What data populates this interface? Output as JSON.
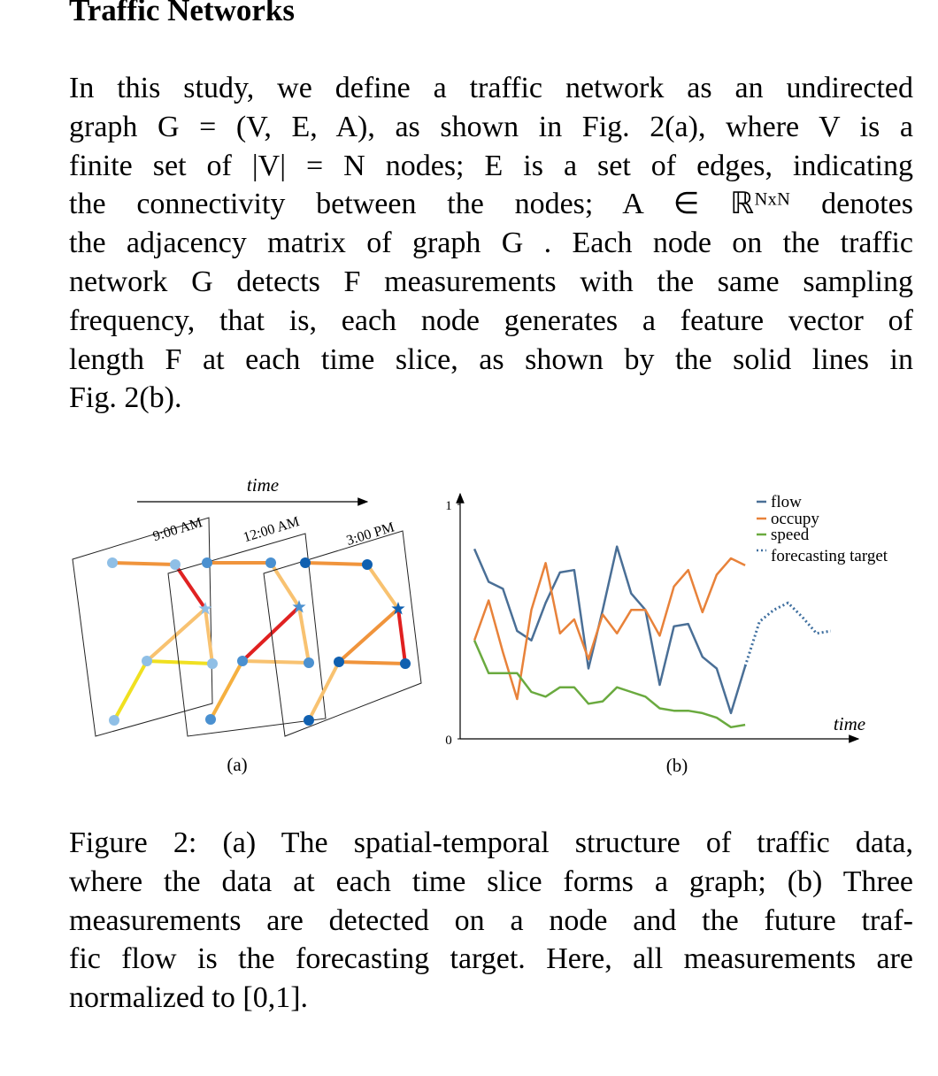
{
  "section_title": "Traffic Networks",
  "paragraph": [
    "In this study, we define a traffic network as an undirected",
    "graph G = (V, E, A), as shown in Fig. 2(a), where V is a",
    "finite set of |V| = N nodes; E is a set of edges, indicating",
    "the connectivity between the nodes; A ∈ ℝᴺˣᴺ denotes",
    "the adjacency matrix of graph G . Each node on the traffic",
    "network G detects F measurements with the same sampling",
    "frequency, that is, each node generates a feature vector of",
    "length F at each time slice, as shown by the solid lines in",
    "Fig. 2(b)."
  ],
  "figure": {
    "panel_a": {
      "time_label": "time",
      "slices": [
        "9:00 AM",
        "12:00 AM",
        "3:00 PM"
      ],
      "label": "(a)"
    },
    "panel_b": {
      "type": "line",
      "x": [
        0,
        1,
        2,
        3,
        4,
        5,
        6,
        7,
        8,
        9,
        10,
        11,
        12,
        13,
        14,
        15,
        16,
        17,
        18,
        19,
        20,
        21,
        22,
        23,
        24,
        25
      ],
      "xlim": [
        -1,
        27
      ],
      "ylim": [
        0,
        1
      ],
      "yticks": [
        0,
        1
      ],
      "xlabel": "time",
      "series": [
        {
          "name": "flow",
          "color": "#4a6f96",
          "line_style": "solid",
          "values": [
            0.81,
            0.67,
            0.64,
            0.46,
            0.42,
            0.58,
            0.71,
            0.72,
            0.3,
            0.55,
            0.82,
            0.62,
            0.55,
            0.23,
            0.48,
            0.49,
            0.35,
            0.3,
            0.11,
            0.31,
            null,
            null,
            null,
            null,
            null,
            null
          ]
        },
        {
          "name": "occupy",
          "color": "#e8823a",
          "line_style": "solid",
          "values": [
            0.42,
            0.59,
            0.37,
            0.17,
            0.55,
            0.75,
            0.45,
            0.51,
            0.34,
            0.53,
            0.45,
            0.55,
            0.55,
            0.44,
            0.65,
            0.72,
            0.54,
            0.7,
            0.77,
            0.74,
            null,
            null,
            null,
            null,
            null,
            null
          ]
        },
        {
          "name": "speed",
          "color": "#6aaa3f",
          "line_style": "solid",
          "values": [
            0.42,
            0.28,
            0.28,
            0.28,
            0.2,
            0.18,
            0.22,
            0.22,
            0.15,
            0.16,
            0.22,
            0.2,
            0.18,
            0.13,
            0.12,
            0.12,
            0.11,
            0.09,
            0.05,
            0.06,
            null,
            null,
            null,
            null,
            null,
            null
          ]
        },
        {
          "name": "forecasting target",
          "color": "#3f6f9f",
          "line_style": "dotted",
          "values": [
            null,
            null,
            null,
            null,
            null,
            null,
            null,
            null,
            null,
            null,
            null,
            null,
            null,
            null,
            null,
            null,
            null,
            null,
            null,
            0.31,
            0.5,
            0.55,
            0.58,
            0.52,
            0.45,
            0.46
          ]
        }
      ],
      "label": "(b)"
    }
  },
  "caption": [
    "Figure 2: (a) The spatial-temporal structure of traffic data,",
    "where the data at each time slice forms a graph; (b) Three",
    "measurements are detected on a node and the future traf-",
    "fic flow is the forecasting target. Here, all measurements are",
    "normalized to [0,1]."
  ]
}
